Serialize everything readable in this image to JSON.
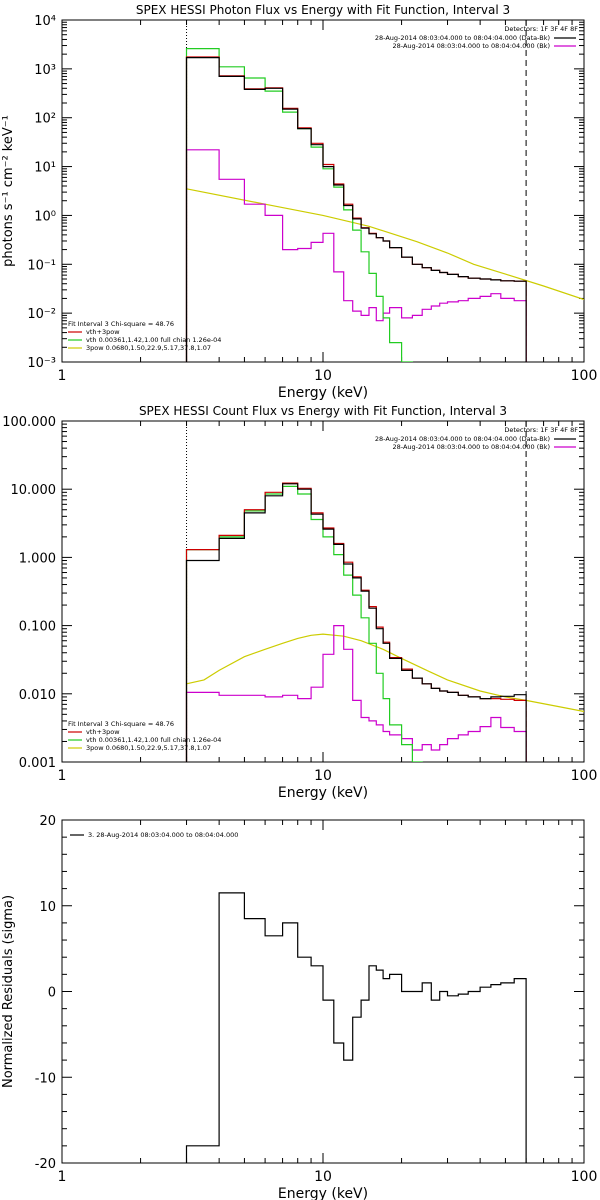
{
  "colors": {
    "axis": "#000000",
    "total": "#000000",
    "model": "#cc0000",
    "thermal": "#22cc22",
    "powerlaw": "#cccc00",
    "background": "#cc00cc"
  },
  "chart_data": [
    {
      "type": "line",
      "title": "SPEX HESSI Photon Flux vs Energy with Fit Function, Interval 3",
      "xlabel": "Energy (keV)",
      "ylabel": "photons s⁻¹ cm⁻² keV⁻¹",
      "xscale": "log",
      "yscale": "log",
      "xlim": [
        1,
        100
      ],
      "ylim": [
        0.001,
        10000
      ],
      "x_ticks": [
        "1",
        "10",
        "100"
      ],
      "y_ticks": [
        "10⁻³",
        "10⁻²",
        "10⁻¹",
        "10⁰",
        "10¹",
        "10²",
        "10³",
        "10⁴"
      ],
      "legend_top": {
        "header": "Detectors: 1F 3F 4F 8F",
        "entries": [
          {
            "text": "28-Aug-2014 08:03:04.000 to 08:04:04.000 (Data-Bk)",
            "series": "total"
          },
          {
            "text": "28-Aug-2014 08:03:04.000 to 08:04:04.000 (Bk)",
            "series": "background"
          }
        ]
      },
      "legend_bottom": {
        "header": "Fit Interval 3   Chi-square = 48.76",
        "entries": [
          {
            "text": "vth+3pow",
            "series": "model"
          },
          {
            "text": "vth 0.00361,1.42,1.00  full chian 1.26e-04",
            "series": "thermal"
          },
          {
            "text": "3pow 0.0680,1.50,22.9,5.17,37.8,1.07",
            "series": "powerlaw"
          }
        ]
      },
      "vlines": [
        {
          "x": 3,
          "style": "dotted"
        },
        {
          "x": 60,
          "style": "dashed"
        }
      ],
      "energy_edges": [
        3,
        4,
        5,
        6,
        7,
        8,
        9,
        10,
        11,
        12,
        13,
        14,
        15,
        16,
        17,
        18,
        20,
        22,
        24,
        26,
        28,
        30,
        33,
        36,
        40,
        44,
        48,
        54,
        60
      ],
      "series": [
        {
          "key": "total",
          "values": [
            1700,
            700,
            380,
            400,
            150,
            60,
            28,
            10,
            4.2,
            1.6,
            0.85,
            0.55,
            0.42,
            0.35,
            0.3,
            0.22,
            0.14,
            0.1,
            0.085,
            0.075,
            0.068,
            0.062,
            0.056,
            0.052,
            0.05,
            0.048,
            0.046,
            0.045
          ]
        },
        {
          "key": "model",
          "values": [
            1750,
            720,
            390,
            410,
            155,
            62,
            30,
            11,
            4.4,
            1.7,
            0.88,
            0.56,
            0.43,
            0.35,
            0.3,
            0.22,
            0.14,
            0.1,
            0.085,
            0.075,
            0.068,
            0.062,
            0.056,
            0.052,
            0.05,
            0.048,
            0.046,
            0.045
          ]
        },
        {
          "key": "thermal",
          "values": [
            2600,
            1100,
            650,
            350,
            130,
            60,
            25,
            9,
            3.8,
            1.3,
            0.5,
            0.18,
            0.065,
            0.022,
            0.008,
            0.0025,
            0.001
          ]
        },
        {
          "key": "background",
          "values": [
            22,
            5.5,
            1.7,
            1.0,
            0.2,
            0.21,
            0.28,
            0.43,
            0.07,
            0.018,
            0.011,
            0.009,
            0.013,
            0.007,
            0.01,
            0.013,
            0.008,
            0.009,
            0.012,
            0.014,
            0.016,
            0.017,
            0.018,
            0.02,
            0.022,
            0.025,
            0.02,
            0.018
          ]
        }
      ],
      "powerlaw_line": {
        "x": [
          3,
          6,
          10,
          15,
          22.9,
          30,
          37.8,
          50,
          70,
          100
        ],
        "y": [
          3.5,
          1.7,
          1.0,
          0.6,
          0.29,
          0.17,
          0.1,
          0.063,
          0.036,
          0.019
        ]
      }
    },
    {
      "type": "line",
      "title": "SPEX HESSI Count Flux vs Energy with Fit Function, Interval 3",
      "xlabel": "Energy (keV)",
      "ylabel": "",
      "xscale": "log",
      "yscale": "log",
      "xlim": [
        1,
        100
      ],
      "ylim": [
        0.001,
        100
      ],
      "x_ticks": [
        "1",
        "10",
        "100"
      ],
      "y_ticks": [
        "0.001",
        "0.010",
        "0.100",
        "1.000",
        "10.000",
        "100.000"
      ],
      "legend_top": {
        "header": "Detectors: 1F 3F 4F 8F",
        "entries": [
          {
            "text": "28-Aug-2014 08:03:04.000 to 08:04:04.000 (Data-Bk)",
            "series": "total"
          },
          {
            "text": "28-Aug-2014 08:03:04.000 to 08:04:04.000 (Bk)",
            "series": "background"
          }
        ]
      },
      "legend_bottom": {
        "header": "Fit Interval 3   Chi-square = 48.76",
        "entries": [
          {
            "text": "vth+3pow",
            "series": "model"
          },
          {
            "text": "vth 0.00361,1.42,1.00  full chian 1.26e-04",
            "series": "thermal"
          },
          {
            "text": "3pow 0.0680,1.50,22.9,5.17,37.8,1.07",
            "series": "powerlaw"
          }
        ]
      },
      "vlines": [
        {
          "x": 3,
          "style": "dotted"
        },
        {
          "x": 60,
          "style": "dashed"
        }
      ],
      "energy_edges": [
        3,
        4,
        5,
        6,
        7,
        8,
        9,
        10,
        11,
        12,
        13,
        14,
        15,
        16,
        17,
        18,
        20,
        22,
        24,
        26,
        28,
        30,
        33,
        36,
        40,
        44,
        48,
        54,
        60
      ],
      "series": [
        {
          "key": "total",
          "values": [
            0.9,
            1.9,
            4.5,
            8.0,
            12.0,
            10.0,
            4.3,
            2.6,
            1.55,
            0.8,
            0.5,
            0.32,
            0.18,
            0.09,
            0.055,
            0.033,
            0.022,
            0.017,
            0.014,
            0.012,
            0.011,
            0.0105,
            0.0095,
            0.009,
            0.0085,
            0.009,
            0.0092,
            0.0097
          ]
        },
        {
          "key": "model",
          "values": [
            1.3,
            2.1,
            5.0,
            9.0,
            12.3,
            10.3,
            4.5,
            2.7,
            1.6,
            0.85,
            0.52,
            0.33,
            0.19,
            0.095,
            0.057,
            0.034,
            0.023,
            0.017,
            0.014,
            0.012,
            0.011,
            0.0105,
            0.0095,
            0.009,
            0.0085,
            0.0085,
            0.0083,
            0.008
          ]
        },
        {
          "key": "thermal",
          "values": [
            1.3,
            2.0,
            4.8,
            8.5,
            11.0,
            8.5,
            3.6,
            2.0,
            1.1,
            0.55,
            0.28,
            0.13,
            0.055,
            0.02,
            0.0085,
            0.0035,
            0.0018,
            0.001
          ]
        },
        {
          "key": "background",
          "values": [
            0.0105,
            0.0095,
            0.0095,
            0.009,
            0.0095,
            0.0085,
            0.0125,
            0.038,
            0.1,
            0.045,
            0.008,
            0.0045,
            0.004,
            0.0035,
            0.0028,
            0.0025,
            0.0022,
            0.0015,
            0.0018,
            0.0015,
            0.0018,
            0.0022,
            0.0025,
            0.0028,
            0.0033,
            0.0045,
            0.0032,
            0.0028
          ]
        }
      ],
      "powerlaw_line": {
        "x": [
          3,
          3.5,
          4,
          5,
          6,
          7,
          8,
          9,
          10,
          12,
          14,
          17,
          20,
          25,
          30,
          40,
          50,
          60,
          80,
          100
        ],
        "y": [
          0.014,
          0.016,
          0.022,
          0.035,
          0.045,
          0.055,
          0.065,
          0.072,
          0.075,
          0.07,
          0.06,
          0.045,
          0.033,
          0.022,
          0.016,
          0.011,
          0.009,
          0.008,
          0.0065,
          0.0055
        ]
      }
    },
    {
      "type": "line",
      "title": "",
      "xlabel": "Energy (keV)",
      "ylabel": "Normalized Residuals (sigma)",
      "xscale": "log",
      "yscale": "linear",
      "xlim": [
        1,
        100
      ],
      "ylim": [
        -20,
        20
      ],
      "x_ticks": [
        "1",
        "10",
        "100"
      ],
      "y_ticks": [
        "-20",
        "-10",
        "0",
        "10",
        "20"
      ],
      "legend_top": {
        "header": "",
        "entries": [
          {
            "text": "3. 28-Aug-2014 08:03:04.000 to 08:04:04.000",
            "series": "total"
          }
        ]
      },
      "legend_bottom": {
        "header": "",
        "entries": []
      },
      "vlines": [],
      "energy_edges": [
        3,
        4,
        5,
        6,
        7,
        8,
        9,
        10,
        11,
        12,
        13,
        14,
        15,
        16,
        17,
        18,
        20,
        22,
        24,
        26,
        28,
        30,
        33,
        36,
        40,
        44,
        48,
        54,
        60
      ],
      "series": [
        {
          "key": "total",
          "values": [
            -18,
            11.5,
            8.5,
            6.5,
            8,
            4,
            3,
            -1,
            -6,
            -8,
            -3,
            -1,
            3,
            2.5,
            1.5,
            2,
            0,
            0,
            1,
            -1,
            0,
            -0.5,
            -0.3,
            0,
            0.5,
            0.8,
            1,
            1.5
          ]
        }
      ]
    }
  ]
}
